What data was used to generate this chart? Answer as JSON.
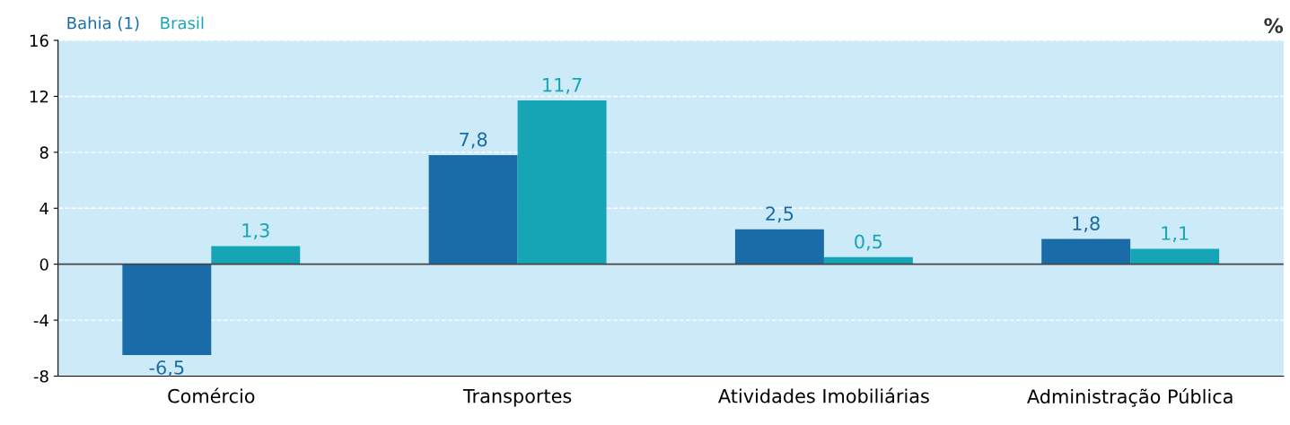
{
  "chart_data": {
    "type": "bar",
    "ylabel": "%",
    "categories": [
      "Comércio",
      "Transportes",
      "Atividades Imobiliárias",
      "Administração Pública"
    ],
    "series": [
      {
        "name": "Bahia (1)",
        "color": "#1a6ca8",
        "values": [
          -6.5,
          7.8,
          2.5,
          1.8
        ],
        "value_labels": [
          "-6,5",
          "7,8",
          "2,5",
          "1,8"
        ]
      },
      {
        "name": "Brasil",
        "color": "#16a5b4",
        "values": [
          1.3,
          11.7,
          0.5,
          1.1
        ],
        "value_labels": [
          "1,3",
          "11,7",
          "0,5",
          "1,1"
        ]
      }
    ],
    "ylim": [
      -8,
      16
    ],
    "yticks": [
      -8,
      -4,
      0,
      4,
      8,
      12,
      16
    ],
    "grid": "y",
    "legend": "top left"
  }
}
